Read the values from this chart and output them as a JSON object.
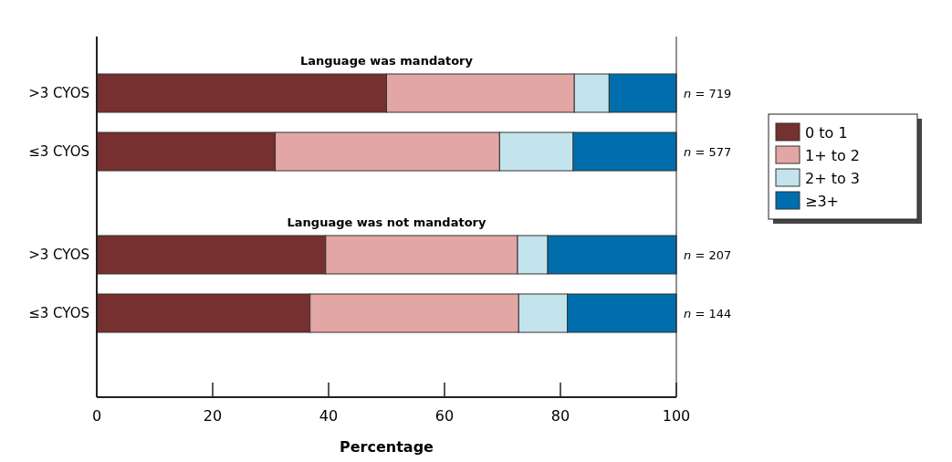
{
  "chart_data": {
    "type": "bar",
    "orientation": "horizontal",
    "stacked": true,
    "xlabel": "Percentage",
    "categories": [
      ">3 CYOS",
      "≤3 CYOS",
      ">3 CYOS",
      "≤3 CYOS"
    ],
    "series": [
      {
        "name": "0 to 1",
        "color": "#76302f",
        "values": [
          50,
          30.8,
          39.5,
          36.8
        ]
      },
      {
        "name": "1+ to 2",
        "color": "#e2a7a5",
        "values": [
          32.4,
          38.7,
          33.1,
          36
        ]
      },
      {
        "name": "2+ to 3",
        "color": "#c4e4ed",
        "values": [
          6,
          12.7,
          5.2,
          8.4
        ]
      },
      {
        "name": "≥3+",
        "color": "#006eac",
        "values": [
          11.6,
          17.8,
          22.2,
          18.8
        ]
      }
    ],
    "xlim": [
      0,
      100
    ],
    "xticks": [
      0,
      20,
      40,
      60,
      80,
      100
    ],
    "legend": "right",
    "annotations": [
      "Language was mandatory",
      "Language was not mandatory",
      "n = 719",
      "n = 577",
      "n = 207",
      "n = 144"
    ]
  }
}
